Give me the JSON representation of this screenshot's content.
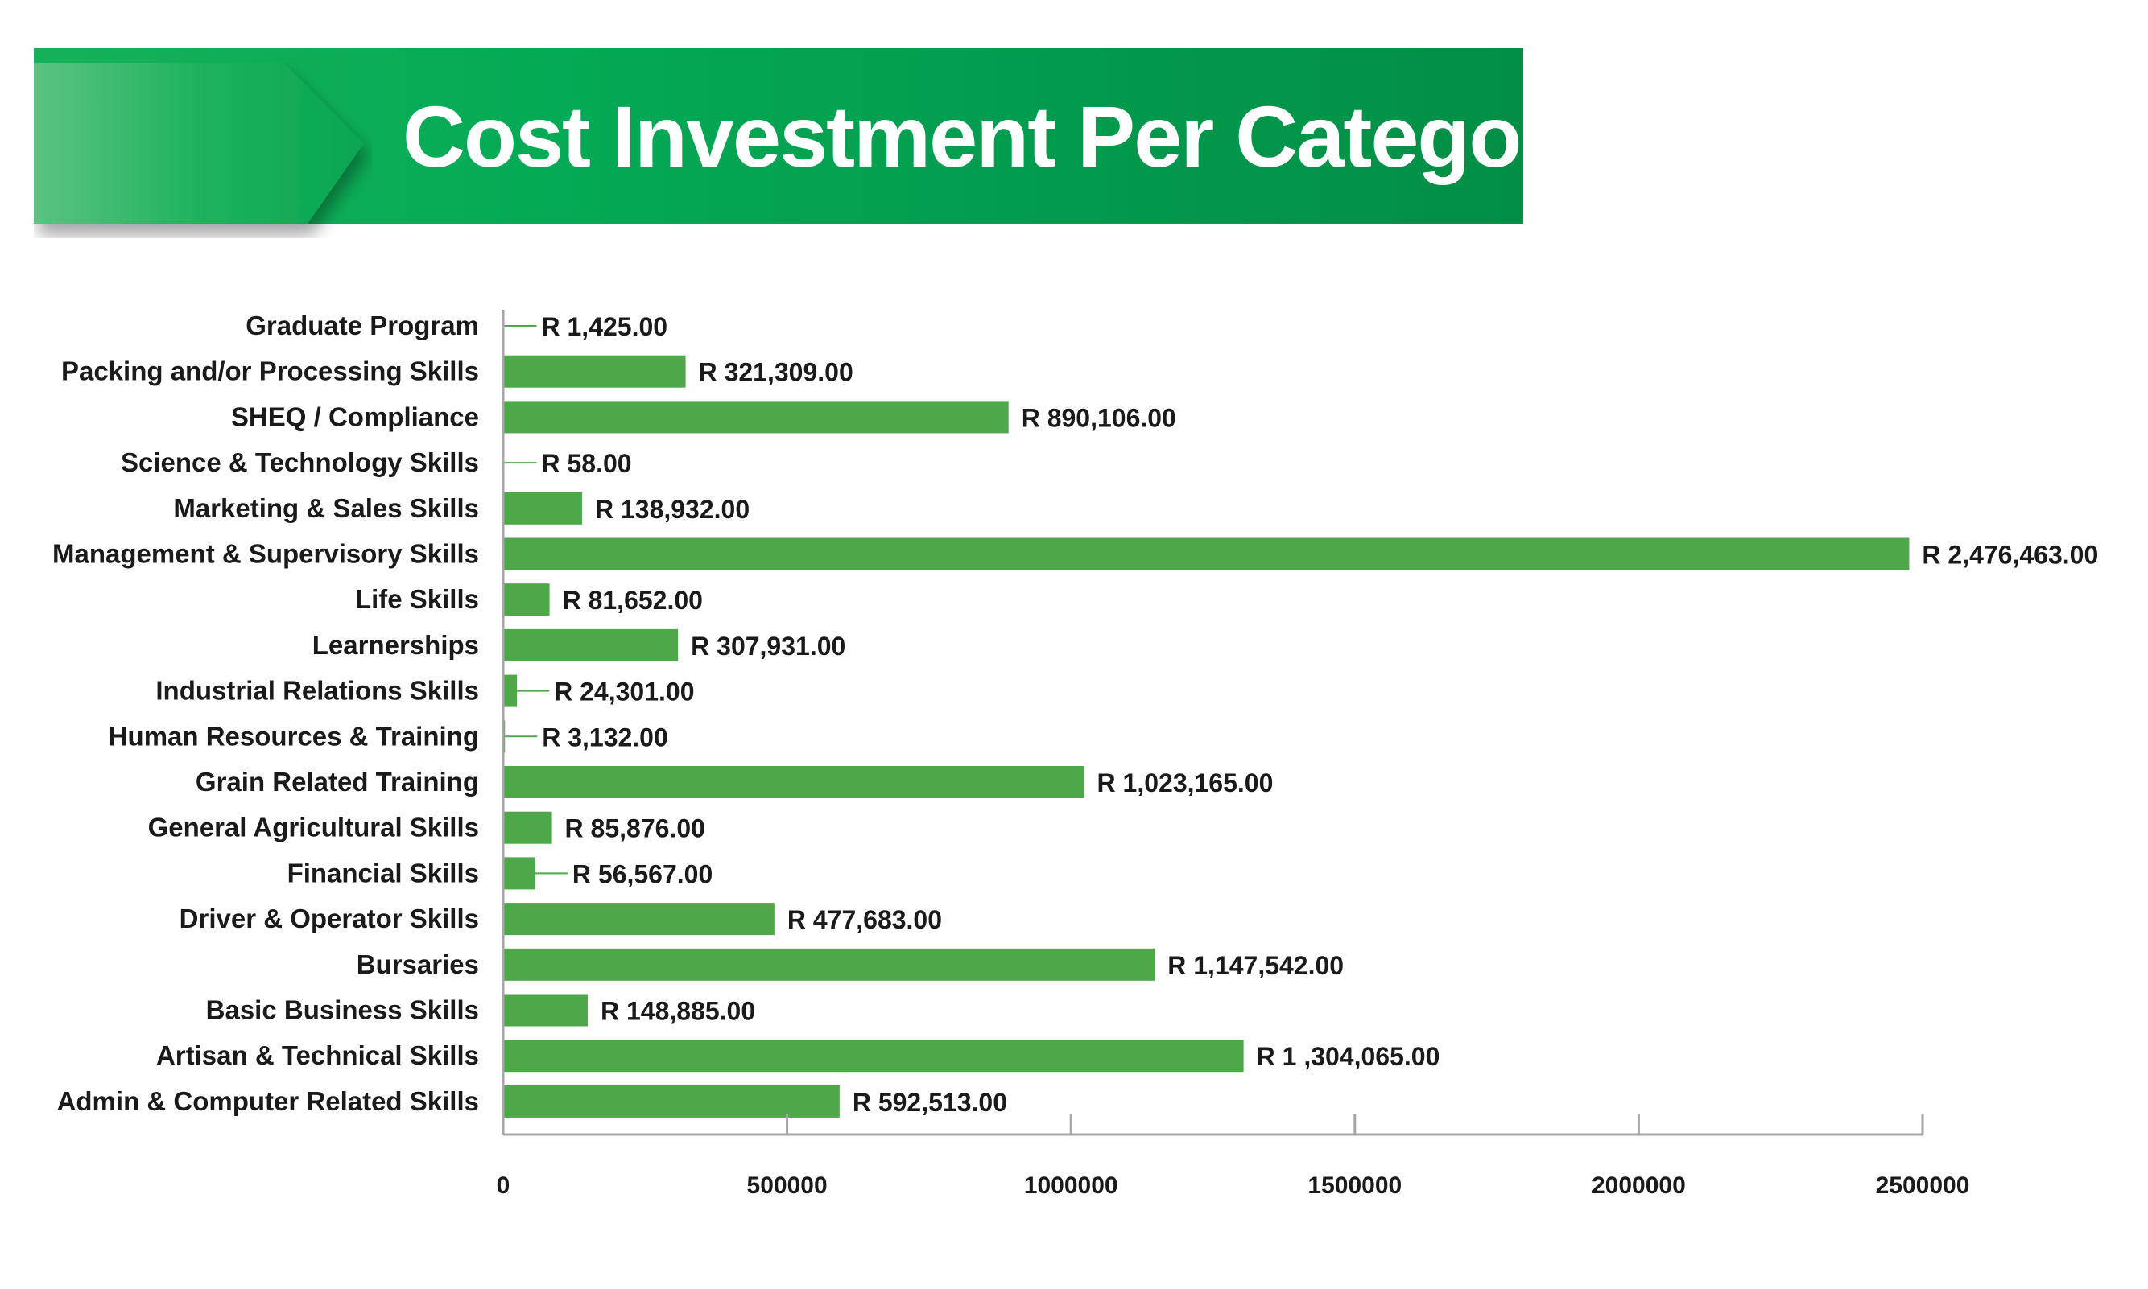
{
  "title": "Cost Investment Per Category",
  "colors": {
    "bar": "#4ea84a",
    "banner": "#02984c",
    "axis": "#a6a6a6",
    "text": "#1a1a1a"
  },
  "chart_data": {
    "type": "bar",
    "orientation": "horizontal",
    "title": "Cost Investment Per Category",
    "categories": [
      "Graduate Program",
      "Packing and/or Processing Skills",
      "SHEQ / Compliance",
      "Science & Technology Skills",
      "Marketing & Sales Skills",
      "Management & Supervisory Skills",
      "Life Skills",
      "Learnerships",
      "Industrial Relations Skills",
      "Human Resources & Training",
      "Grain Related Training",
      "General Agricultural Skills",
      "Financial Skills",
      "Driver & Operator Skills",
      "Bursaries",
      "Basic Business Skills",
      "Artisan & Technical Skills",
      "Admin & Computer Related Skills"
    ],
    "values": [
      1425,
      321309,
      890106,
      58,
      138932,
      2476463,
      81652,
      307931,
      24301,
      3132,
      1023165,
      85876,
      56567,
      477683,
      1147542,
      148885,
      1304065,
      592513
    ],
    "data_labels": [
      "R 1,425.00",
      "R 321,309.00",
      "R 890,106.00",
      "R 58.00",
      "R 138,932.00",
      "R 2,476,463.00",
      "R 81,652.00",
      "R 307,931.00",
      "R 24,301.00",
      "R 3,132.00",
      "R 1,023,165.00",
      "R 85,876.00",
      "R 56,567.00",
      "R 477,683.00",
      "R 1,147,542.00",
      "R 148,885.00",
      "R 1 ,304,065.00",
      "R 592,513.00"
    ],
    "xlim": [
      0,
      2500000
    ],
    "xticks": [
      0,
      500000,
      1000000,
      1500000,
      2000000,
      2500000
    ],
    "xtick_labels": [
      "0",
      "500000",
      "1000000",
      "1500000",
      "2000000",
      "2500000"
    ],
    "grid": false,
    "legend": "none"
  }
}
